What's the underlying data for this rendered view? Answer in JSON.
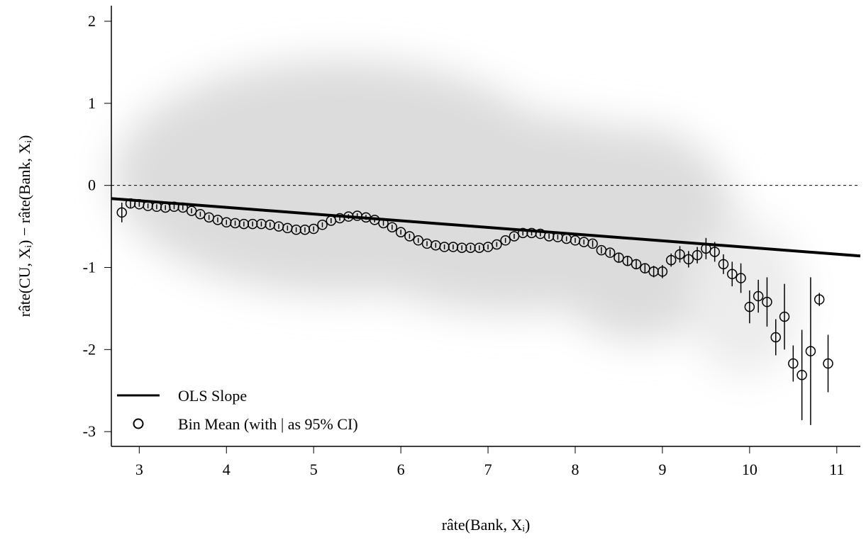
{
  "chart_data": {
    "type": "scatter",
    "xlabel": "râte(Bank, Xᵢ)",
    "ylabel": "râte(CU, Xᵢ) − râte(Bank, Xᵢ)",
    "xlim": [
      2.68,
      11.27
    ],
    "ylim": [
      -3.18,
      2.19
    ],
    "xticks": [
      3,
      4,
      5,
      6,
      7,
      8,
      9,
      10,
      11
    ],
    "yticks": [
      -3,
      -2,
      -1,
      0,
      1,
      2
    ],
    "reference_line": 0,
    "legend": "bottom-left",
    "ols": {
      "name": "OLS Slope",
      "color": "#000000",
      "x": [
        2.68,
        11.27
      ],
      "values": [
        -0.16,
        -0.86
      ]
    },
    "series": [
      {
        "name": "Bin Mean (with | as 95% CI)",
        "color": "#000000",
        "x": [
          2.8,
          2.9,
          3.0,
          3.1,
          3.2,
          3.3,
          3.4,
          3.5,
          3.6,
          3.7,
          3.8,
          3.9,
          4.0,
          4.1,
          4.2,
          4.3,
          4.4,
          4.5,
          4.6,
          4.7,
          4.8,
          4.9,
          5.0,
          5.1,
          5.2,
          5.3,
          5.4,
          5.5,
          5.6,
          5.7,
          5.8,
          5.9,
          6.0,
          6.1,
          6.2,
          6.3,
          6.4,
          6.5,
          6.6,
          6.7,
          6.8,
          6.9,
          7.0,
          7.1,
          7.2,
          7.3,
          7.4,
          7.5,
          7.6,
          7.7,
          7.8,
          7.9,
          8.0,
          8.1,
          8.2,
          8.3,
          8.4,
          8.5,
          8.6,
          8.7,
          8.8,
          8.9,
          9.0,
          9.1,
          9.2,
          9.3,
          9.4,
          9.5,
          9.6,
          9.7,
          9.8,
          9.9,
          10.0,
          10.1,
          10.2,
          10.3,
          10.4,
          10.5,
          10.6,
          10.7,
          10.8,
          10.9
        ],
        "values": [
          -0.33,
          -0.22,
          -0.23,
          -0.25,
          -0.26,
          -0.27,
          -0.26,
          -0.27,
          -0.31,
          -0.35,
          -0.39,
          -0.42,
          -0.45,
          -0.46,
          -0.47,
          -0.47,
          -0.47,
          -0.48,
          -0.5,
          -0.52,
          -0.54,
          -0.54,
          -0.53,
          -0.48,
          -0.43,
          -0.4,
          -0.38,
          -0.37,
          -0.39,
          -0.42,
          -0.46,
          -0.51,
          -0.57,
          -0.62,
          -0.67,
          -0.71,
          -0.73,
          -0.75,
          -0.75,
          -0.76,
          -0.76,
          -0.76,
          -0.75,
          -0.72,
          -0.67,
          -0.62,
          -0.58,
          -0.58,
          -0.59,
          -0.62,
          -0.63,
          -0.65,
          -0.67,
          -0.69,
          -0.71,
          -0.79,
          -0.82,
          -0.88,
          -0.92,
          -0.96,
          -1.01,
          -1.05,
          -1.05,
          -0.91,
          -0.84,
          -0.9,
          -0.85,
          -0.77,
          -0.81,
          -0.96,
          -1.08,
          -1.13,
          -1.48,
          -1.35,
          -1.42,
          -1.85,
          -1.6,
          -2.17,
          -2.31,
          -2.02,
          -1.39,
          -2.17
        ],
        "errors": [
          0.12,
          0.05,
          0.03,
          0.03,
          0.03,
          0.03,
          0.03,
          0.03,
          0.03,
          0.03,
          0.03,
          0.03,
          0.03,
          0.03,
          0.03,
          0.03,
          0.03,
          0.03,
          0.03,
          0.03,
          0.03,
          0.03,
          0.03,
          0.03,
          0.03,
          0.03,
          0.03,
          0.03,
          0.03,
          0.03,
          0.03,
          0.03,
          0.03,
          0.03,
          0.03,
          0.03,
          0.03,
          0.03,
          0.03,
          0.03,
          0.03,
          0.03,
          0.03,
          0.03,
          0.03,
          0.03,
          0.03,
          0.03,
          0.03,
          0.03,
          0.03,
          0.03,
          0.03,
          0.03,
          0.04,
          0.04,
          0.04,
          0.05,
          0.05,
          0.06,
          0.06,
          0.07,
          0.08,
          0.08,
          0.1,
          0.1,
          0.1,
          0.13,
          0.12,
          0.12,
          0.15,
          0.18,
          0.2,
          0.2,
          0.3,
          0.22,
          0.4,
          0.22,
          0.55,
          0.9,
          0.08,
          0.35
        ]
      }
    ]
  }
}
